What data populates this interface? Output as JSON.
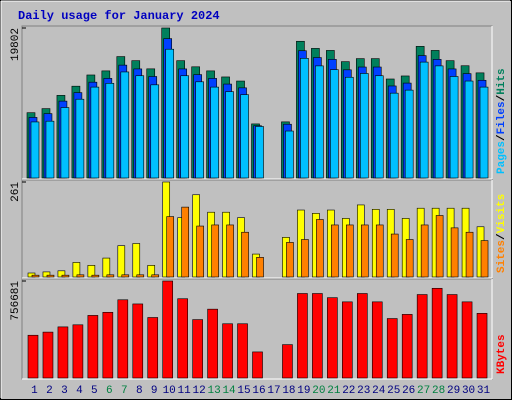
{
  "chart_data": [
    {
      "type": "bar",
      "title": "Daily usage for January 2024",
      "ylim": [
        0,
        19802
      ],
      "yticks": [
        19802
      ],
      "legend_separator": "/",
      "series": [
        {
          "name": "Hits",
          "color": "#00805C",
          "values": [
            8620,
            9160,
            10910,
            12120,
            13600,
            14140,
            16030,
            15490,
            14410,
            19802,
            15490,
            14680,
            14140,
            13340,
            12800,
            7140,
            null,
            7410,
            18050,
            17110,
            16840,
            15360,
            15760,
            15760,
            13070,
            13470,
            17380,
            16840,
            15490,
            14820,
            13880
          ]
        },
        {
          "name": "Files",
          "color": "#0040FF",
          "values": [
            8000,
            8500,
            10150,
            11270,
            12650,
            13150,
            14900,
            14400,
            13400,
            18400,
            14400,
            13650,
            13150,
            12400,
            11900,
            6900,
            null,
            7100,
            16800,
            15900,
            15660,
            14280,
            14650,
            14650,
            12150,
            12530,
            16160,
            15660,
            14400,
            13780,
            12900
          ]
        },
        {
          "name": "Pages",
          "color": "#00C0FF",
          "values": [
            7400,
            7500,
            9300,
            10400,
            12000,
            12500,
            14000,
            13500,
            12300,
            17000,
            13500,
            12700,
            12000,
            11400,
            11000,
            6800,
            null,
            6200,
            15800,
            14800,
            14300,
            13300,
            13800,
            13500,
            11200,
            11600,
            15300,
            14800,
            13400,
            12800,
            12000
          ]
        }
      ]
    },
    {
      "type": "bar",
      "ylim": [
        0,
        261
      ],
      "yticks": [
        261
      ],
      "legend_separator": "/",
      "series": [
        {
          "name": "Visits",
          "color": "#FFFF00",
          "values": [
            11,
            14,
            17,
            40,
            32,
            52,
            86,
            92,
            32,
            261,
            163,
            226,
            178,
            178,
            163,
            63,
            null,
            109,
            184,
            175,
            184,
            161,
            198,
            186,
            186,
            161,
            189,
            189,
            189,
            189,
            138
          ]
        },
        {
          "name": "Sites",
          "color": "#FF8000",
          "values": [
            5,
            5,
            5,
            6,
            5,
            6,
            6,
            6,
            6,
            166,
            192,
            140,
            143,
            143,
            123,
            54,
            null,
            95,
            103,
            158,
            143,
            143,
            143,
            143,
            118,
            103,
            143,
            169,
            135,
            123,
            100
          ]
        }
      ]
    },
    {
      "type": "bar",
      "ylim": [
        0,
        756681
      ],
      "yticks": [
        756681
      ],
      "categories": [
        "1",
        "2",
        "3",
        "4",
        "5",
        "6",
        "7",
        "8",
        "9",
        "10",
        "11",
        "12",
        "13",
        "14",
        "15",
        "16",
        "17",
        "18",
        "19",
        "20",
        "21",
        "22",
        "23",
        "24",
        "25",
        "26",
        "27",
        "28",
        "29",
        "30",
        "31"
      ],
      "label_colors": [
        "#000080",
        "#000080",
        "#000080",
        "#000080",
        "#000080",
        "#008040",
        "#008040",
        "#000080",
        "#000080",
        "#000080",
        "#000080",
        "#000080",
        "#008040",
        "#008040",
        "#000080",
        "#000080",
        "#000080",
        "#000080",
        "#000080",
        "#008040",
        "#008040",
        "#000080",
        "#000080",
        "#000080",
        "#000080",
        "#000080",
        "#008040",
        "#008040",
        "#000080",
        "#000080",
        "#000080"
      ],
      "series": [
        {
          "name": "KBytes",
          "color": "#FF0000",
          "values": [
            333590,
            358000,
            398700,
            415000,
            488200,
            512600,
            610200,
            577700,
            471900,
            756681,
            618400,
            455600,
            537000,
            423100,
            423100,
            203400,
            null,
            260400,
            659100,
            659100,
            626600,
            594000,
            659100,
            594000,
            463800,
            496300,
            651000,
            699800,
            651000,
            594000,
            504400
          ]
        }
      ]
    }
  ]
}
